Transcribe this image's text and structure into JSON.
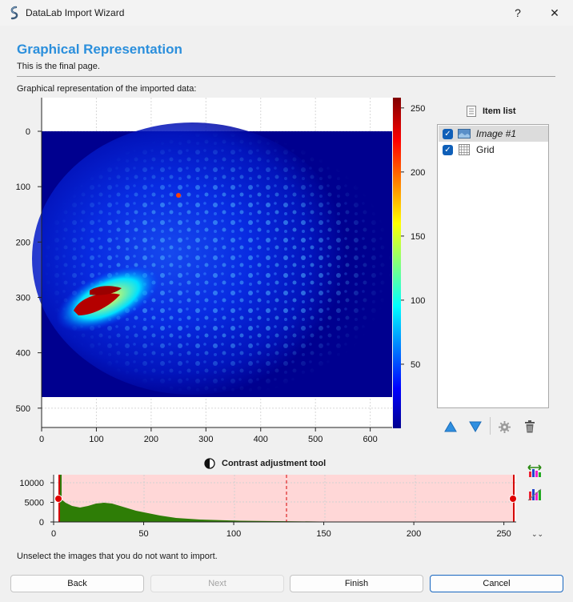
{
  "window": {
    "title": "DataLab Import Wizard",
    "help_label": "?",
    "close_label": "✕"
  },
  "header": {
    "title": "Graphical Representation",
    "subtitle": "This is the final page."
  },
  "plot": {
    "label": "Graphical representation of the imported data:",
    "x_ticks": [
      "0",
      "100",
      "200",
      "300",
      "400",
      "500",
      "600"
    ],
    "y_ticks": [
      "0",
      "100",
      "200",
      "300",
      "400",
      "500"
    ],
    "colorbar_ticks": [
      "250",
      "200",
      "150",
      "100",
      "50"
    ]
  },
  "item_list": {
    "title": "Item list",
    "items": [
      {
        "label": "Image #1",
        "checked": true,
        "selected": true,
        "icon": "image-icon"
      },
      {
        "label": "Grid",
        "checked": true,
        "selected": false,
        "icon": "grid-icon"
      }
    ]
  },
  "contrast": {
    "title": "Contrast adjustment tool",
    "y_ticks": [
      "10000",
      "5000",
      "0"
    ],
    "x_ticks": [
      "0",
      "50",
      "100",
      "150",
      "200",
      "250"
    ]
  },
  "footer": {
    "note": "Unselect the images that you do not want to import.",
    "back_label": "Back",
    "next_label": "Next",
    "finish_label": "Finish",
    "cancel_label": "Cancel"
  },
  "colors": {
    "accent": "#2b8fdc",
    "histogram_fill": "#2e7d06",
    "range_fill": "#ffd7d7",
    "marker": "#d40000"
  }
}
